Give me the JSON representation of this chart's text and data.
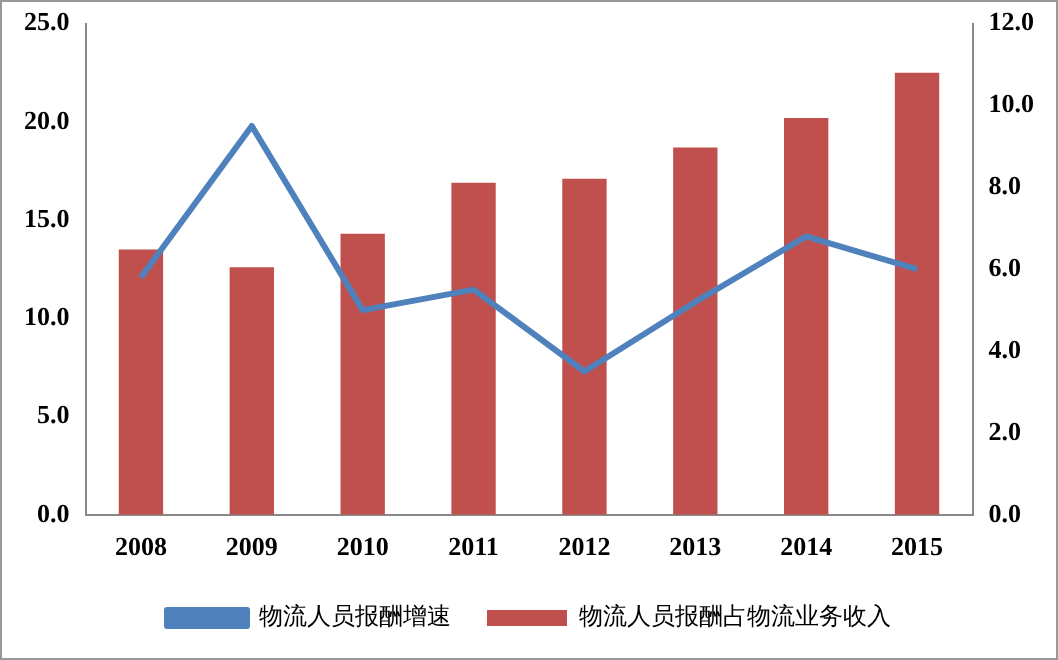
{
  "chart_data": {
    "type": "bar",
    "categories": [
      "2008",
      "2009",
      "2010",
      "2011",
      "2012",
      "2013",
      "2014",
      "2015"
    ],
    "series": [
      {
        "name": "物流人员报酬占物流业务收入",
        "color": "#c0504d",
        "values": [
          13.5,
          12.6,
          14.3,
          16.9,
          17.1,
          18.7,
          20.2,
          22.5
        ]
      },
      {
        "name": "物流人员报酬增速",
        "type": "line",
        "axis": "y2",
        "color": "#4f81bd",
        "values": [
          5.8,
          9.5,
          5.0,
          5.5,
          3.5,
          5.2,
          6.8,
          6.0
        ]
      }
    ],
    "ylim": [
      0,
      25
    ],
    "yticks": [
      {
        "value": 0,
        "label": "0.0"
      },
      {
        "value": 5,
        "label": "5.0"
      },
      {
        "value": 10,
        "label": "10.0"
      },
      {
        "value": 15,
        "label": "15.0"
      },
      {
        "value": 20,
        "label": "20.0"
      },
      {
        "value": 25,
        "label": "25.0"
      }
    ],
    "y2lim": [
      0,
      12
    ],
    "y2ticks": [
      {
        "value": 0,
        "label": "0.0"
      },
      {
        "value": 2,
        "label": "2.0"
      },
      {
        "value": 4,
        "label": "4.0"
      },
      {
        "value": 6,
        "label": "6.0"
      },
      {
        "value": 8,
        "label": "8.0"
      },
      {
        "value": 10,
        "label": "10.0"
      },
      {
        "value": 12,
        "label": "12.0"
      }
    ],
    "grid": false,
    "legend": "bottom",
    "marker": "none"
  }
}
